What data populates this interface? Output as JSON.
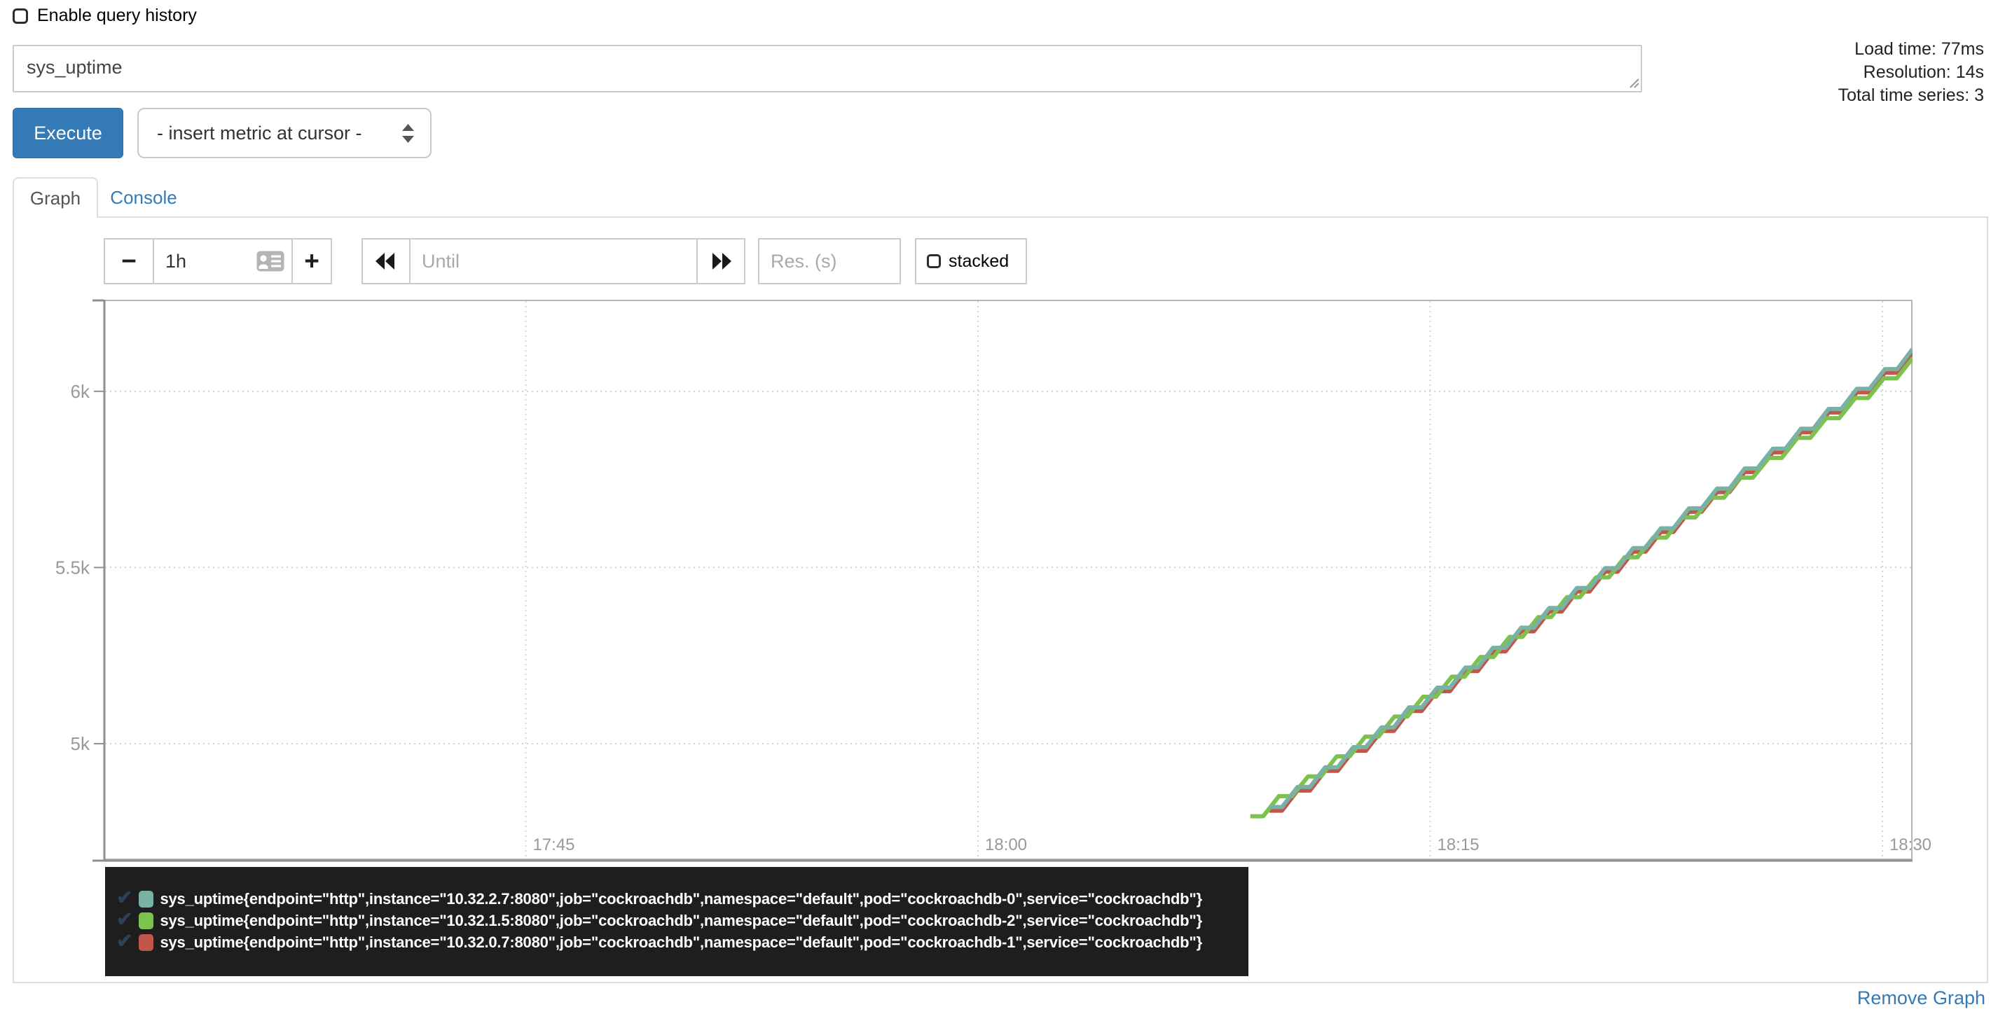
{
  "header": {
    "history_label": "Enable query history",
    "query_value": "sys_uptime",
    "stats": [
      "Load time: 77ms",
      "Resolution: 14s",
      "Total time series: 3"
    ],
    "execute_label": "Execute",
    "insert_metric_label": "- insert metric at cursor -"
  },
  "tabs": {
    "graph": "Graph",
    "console": "Console"
  },
  "controls": {
    "shrink_range_label": "−",
    "range_value": "1h",
    "grow_range_label": "+",
    "until_placeholder": "Until",
    "res_placeholder": "Res. (s)",
    "stacked_label": "stacked"
  },
  "footer": {
    "remove_graph_label": "Remove Graph"
  },
  "legend_check_glyph": "✔",
  "chart_data": {
    "type": "line",
    "title": "",
    "xlabel": "",
    "ylabel": "",
    "grid": true,
    "legend_position": "bottom",
    "x_axis": {
      "window_start": "17:31",
      "window_end": "18:31",
      "range_seconds": [
        0,
        3600
      ],
      "ticks": [
        {
          "t": 840,
          "label": "17:45"
        },
        {
          "t": 1740,
          "label": "18:00"
        },
        {
          "t": 2640,
          "label": "18:15"
        },
        {
          "t": 3540,
          "label": "18:30"
        }
      ]
    },
    "y_axis": {
      "range": [
        4670,
        6260
      ],
      "ticks": [
        {
          "v": 5000,
          "label": "5k"
        },
        {
          "v": 5500,
          "label": "5.5k"
        },
        {
          "v": 6000,
          "label": "6k"
        }
      ]
    },
    "series": [
      {
        "label": "sys_uptime{endpoint=\"http\",instance=\"10.32.2.7:8080\",job=\"cockroachdb\",namespace=\"default\",pod=\"cockroachdb-0\",service=\"cockroachdb\"}",
        "color": "#79b1a5",
        "points": [
          [
            2320,
            4820
          ],
          [
            2376,
            4877
          ],
          [
            2431,
            4933
          ],
          [
            2487,
            4990
          ],
          [
            2543,
            5046
          ],
          [
            2598,
            5103
          ],
          [
            2654,
            5159
          ],
          [
            2710,
            5216
          ],
          [
            2765,
            5272
          ],
          [
            2821,
            5329
          ],
          [
            2877,
            5385
          ],
          [
            2932,
            5442
          ],
          [
            2988,
            5498
          ],
          [
            3044,
            5555
          ],
          [
            3099,
            5611
          ],
          [
            3155,
            5668
          ],
          [
            3211,
            5724
          ],
          [
            3266,
            5781
          ],
          [
            3322,
            5837
          ],
          [
            3378,
            5894
          ],
          [
            3433,
            5950
          ],
          [
            3489,
            6007
          ],
          [
            3545,
            6063
          ],
          [
            3600,
            6120
          ]
        ]
      },
      {
        "label": "sys_uptime{endpoint=\"http\",instance=\"10.32.1.5:8080\",job=\"cockroachdb\",namespace=\"default\",pod=\"cockroachdb-2\",service=\"cockroachdb\"}",
        "color": "#7dc14f",
        "points": [
          [
            2282,
            4794
          ],
          [
            2339,
            4851
          ],
          [
            2397,
            4907
          ],
          [
            2454,
            4964
          ],
          [
            2511,
            5020
          ],
          [
            2569,
            5077
          ],
          [
            2626,
            5133
          ],
          [
            2683,
            5190
          ],
          [
            2740,
            5246
          ],
          [
            2798,
            5303
          ],
          [
            2855,
            5359
          ],
          [
            2912,
            5416
          ],
          [
            2970,
            5472
          ],
          [
            3027,
            5529
          ],
          [
            3084,
            5585
          ],
          [
            3142,
            5642
          ],
          [
            3199,
            5698
          ],
          [
            3256,
            5755
          ],
          [
            3314,
            5811
          ],
          [
            3371,
            5868
          ],
          [
            3428,
            5924
          ],
          [
            3486,
            5981
          ],
          [
            3543,
            6037
          ],
          [
            3600,
            6094
          ]
        ]
      },
      {
        "label": "sys_uptime{endpoint=\"http\",instance=\"10.32.0.7:8080\",job=\"cockroachdb\",namespace=\"default\",pod=\"cockroachdb-1\",service=\"cockroachdb\"}",
        "color": "#c3564a",
        "points": [
          [
            2320,
            4810
          ],
          [
            2376,
            4867
          ],
          [
            2431,
            4923
          ],
          [
            2487,
            4980
          ],
          [
            2543,
            5036
          ],
          [
            2598,
            5093
          ],
          [
            2654,
            5149
          ],
          [
            2710,
            5206
          ],
          [
            2765,
            5262
          ],
          [
            2821,
            5319
          ],
          [
            2877,
            5375
          ],
          [
            2932,
            5432
          ],
          [
            2988,
            5488
          ],
          [
            3044,
            5545
          ],
          [
            3099,
            5601
          ],
          [
            3155,
            5658
          ],
          [
            3211,
            5714
          ],
          [
            3266,
            5771
          ],
          [
            3322,
            5827
          ],
          [
            3378,
            5884
          ],
          [
            3433,
            5940
          ],
          [
            3489,
            5997
          ],
          [
            3545,
            6053
          ],
          [
            3600,
            6110
          ]
        ]
      }
    ]
  }
}
